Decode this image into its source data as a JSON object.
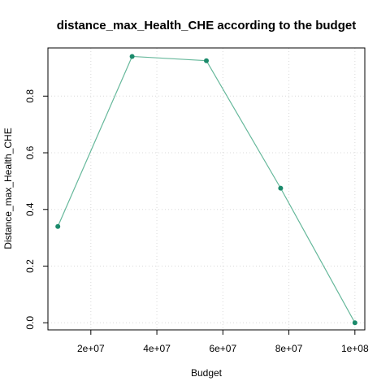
{
  "chart_data": {
    "type": "line",
    "title": "distance_max_Health_CHE according to the budget",
    "xlabel": "Budget",
    "ylabel": "Distance_max_Health_CHE",
    "x": [
      10000000,
      32500000,
      55000000,
      77500000,
      100000000
    ],
    "series": [
      {
        "values": [
          0.34,
          0.94,
          0.925,
          0.475,
          0.0
        ]
      }
    ],
    "xlim": [
      7000000,
      103000000
    ],
    "ylim": [
      -0.025,
      0.97
    ],
    "xticks": [
      20000000,
      40000000,
      60000000,
      80000000,
      100000000
    ],
    "xtick_labels": [
      "2e+07",
      "4e+07",
      "6e+07",
      "8e+07",
      "1e+08"
    ],
    "yticks": [
      0.0,
      0.2,
      0.4,
      0.6,
      0.8
    ],
    "ytick_labels": [
      "0.0",
      "0.2",
      "0.4",
      "0.6",
      "0.8"
    ],
    "grid": true,
    "line_color": "#66b89b",
    "point_color": "#1b8a6b"
  }
}
